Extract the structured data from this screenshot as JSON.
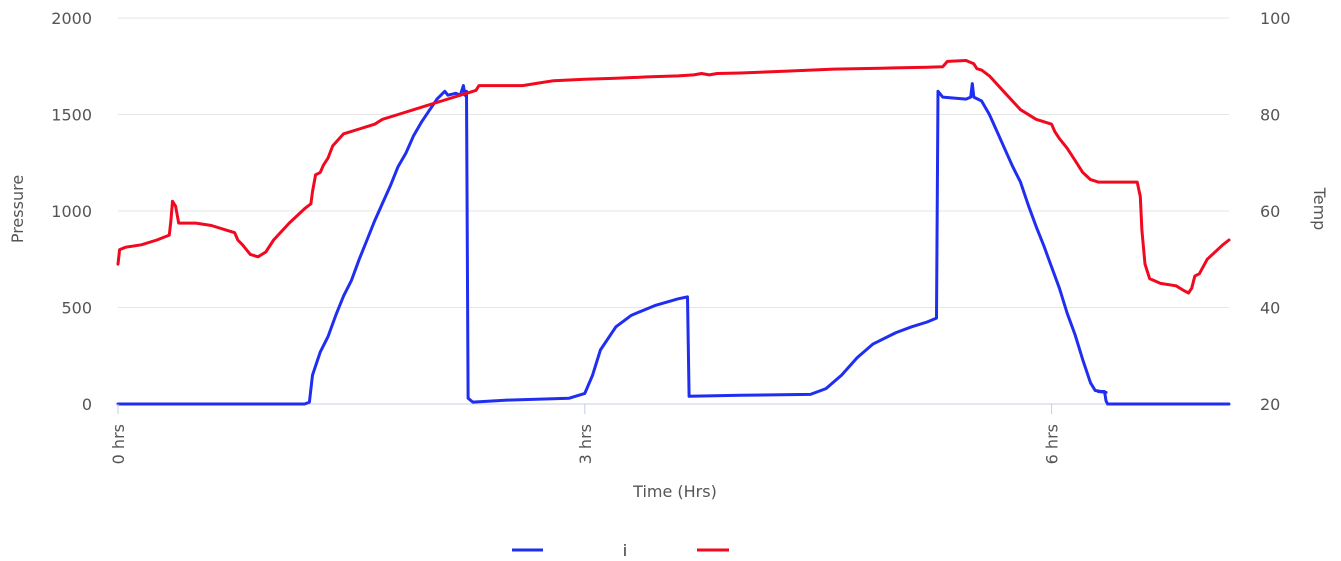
{
  "chart_data": {
    "type": "line",
    "xlabel": "Time (Hrs)",
    "ylabel_left": "Pressure",
    "ylabel_right": "Temp",
    "xlim": [
      0,
      7.14
    ],
    "ylim_left": [
      0,
      2000
    ],
    "ylim_right": [
      20,
      100
    ],
    "x_ticks": [
      0,
      3,
      6
    ],
    "x_tick_labels": [
      "0 hrs",
      "3 hrs",
      "6 hrs"
    ],
    "y_left_ticks": [
      0,
      500,
      1000,
      1500,
      2000
    ],
    "y_left_tick_labels": [
      "0",
      "500",
      "1000",
      "1500",
      "2000"
    ],
    "y_right_ticks": [
      20,
      40,
      60,
      80,
      100
    ],
    "y_right_tick_labels": [
      "20",
      "40",
      "60",
      "80",
      "100"
    ],
    "grid": true,
    "legend_position": "bottom-center",
    "legend_separator": "i",
    "series": [
      {
        "axis": "left",
        "color": "#1f2ef0",
        "points": [
          [
            0,
            0
          ],
          [
            1.2,
            0
          ],
          [
            1.23,
            10
          ],
          [
            1.25,
            150
          ],
          [
            1.3,
            270
          ],
          [
            1.35,
            350
          ],
          [
            1.4,
            460
          ],
          [
            1.45,
            560
          ],
          [
            1.5,
            640
          ],
          [
            1.55,
            750
          ],
          [
            1.6,
            850
          ],
          [
            1.65,
            950
          ],
          [
            1.7,
            1040
          ],
          [
            1.75,
            1130
          ],
          [
            1.8,
            1230
          ],
          [
            1.85,
            1300
          ],
          [
            1.9,
            1390
          ],
          [
            1.95,
            1460
          ],
          [
            2.0,
            1520
          ],
          [
            2.05,
            1580
          ],
          [
            2.1,
            1620
          ],
          [
            2.12,
            1600
          ],
          [
            2.17,
            1610
          ],
          [
            2.2,
            1600
          ],
          [
            2.22,
            1650
          ],
          [
            2.23,
            1600
          ],
          [
            2.24,
            1620
          ],
          [
            2.25,
            30
          ],
          [
            2.28,
            10
          ],
          [
            2.5,
            20
          ],
          [
            2.9,
            30
          ],
          [
            3.0,
            55
          ],
          [
            3.05,
            150
          ],
          [
            3.1,
            280
          ],
          [
            3.2,
            400
          ],
          [
            3.3,
            460
          ],
          [
            3.45,
            510
          ],
          [
            3.6,
            545
          ],
          [
            3.66,
            555
          ],
          [
            3.67,
            40
          ],
          [
            4.0,
            45
          ],
          [
            4.45,
            50
          ],
          [
            4.55,
            80
          ],
          [
            4.65,
            150
          ],
          [
            4.75,
            240
          ],
          [
            4.85,
            310
          ],
          [
            5.0,
            370
          ],
          [
            5.1,
            400
          ],
          [
            5.2,
            425
          ],
          [
            5.26,
            445
          ],
          [
            5.27,
            1620
          ],
          [
            5.3,
            1590
          ],
          [
            5.45,
            1580
          ],
          [
            5.48,
            1590
          ],
          [
            5.49,
            1660
          ],
          [
            5.5,
            1590
          ],
          [
            5.55,
            1570
          ],
          [
            5.6,
            1500
          ],
          [
            5.65,
            1410
          ],
          [
            5.7,
            1320
          ],
          [
            5.75,
            1230
          ],
          [
            5.8,
            1150
          ],
          [
            5.85,
            1030
          ],
          [
            5.9,
            920
          ],
          [
            5.95,
            820
          ],
          [
            6.0,
            710
          ],
          [
            6.05,
            600
          ],
          [
            6.1,
            470
          ],
          [
            6.15,
            360
          ],
          [
            6.2,
            230
          ],
          [
            6.25,
            110
          ],
          [
            6.28,
            70
          ],
          [
            6.35,
            60
          ],
          [
            6.3,
            65
          ],
          [
            6.34,
            65
          ],
          [
            6.35,
            15
          ],
          [
            6.36,
            0
          ],
          [
            7.14,
            0
          ]
        ]
      },
      {
        "axis": "right",
        "color": "#f0091f",
        "points": [
          [
            0,
            49
          ],
          [
            0.01,
            52
          ],
          [
            0.05,
            52.5
          ],
          [
            0.15,
            53
          ],
          [
            0.25,
            54
          ],
          [
            0.33,
            55
          ],
          [
            0.34,
            58
          ],
          [
            0.35,
            62
          ],
          [
            0.37,
            61
          ],
          [
            0.39,
            57.5
          ],
          [
            0.5,
            57.5
          ],
          [
            0.6,
            57
          ],
          [
            0.7,
            56
          ],
          [
            0.75,
            55.5
          ],
          [
            0.77,
            54
          ],
          [
            0.8,
            53
          ],
          [
            0.85,
            51
          ],
          [
            0.9,
            50.5
          ],
          [
            0.95,
            51.5
          ],
          [
            1.0,
            54
          ],
          [
            1.1,
            57.5
          ],
          [
            1.2,
            60.5
          ],
          [
            1.24,
            61.5
          ],
          [
            1.25,
            64
          ],
          [
            1.27,
            67.5
          ],
          [
            1.3,
            68
          ],
          [
            1.32,
            69.5
          ],
          [
            1.35,
            71
          ],
          [
            1.38,
            73.5
          ],
          [
            1.45,
            76
          ],
          [
            1.5,
            76.5
          ],
          [
            1.55,
            77
          ],
          [
            1.6,
            77.5
          ],
          [
            1.65,
            78
          ],
          [
            1.7,
            79
          ],
          [
            1.8,
            80
          ],
          [
            1.9,
            81
          ],
          [
            2.0,
            82
          ],
          [
            2.1,
            83
          ],
          [
            2.2,
            84
          ],
          [
            2.25,
            84.5
          ],
          [
            2.3,
            85
          ],
          [
            2.32,
            86
          ],
          [
            2.4,
            86
          ],
          [
            2.5,
            86
          ],
          [
            2.6,
            86
          ],
          [
            2.7,
            86.5
          ],
          [
            2.8,
            87
          ],
          [
            3.0,
            87.3
          ],
          [
            3.2,
            87.5
          ],
          [
            3.4,
            87.8
          ],
          [
            3.6,
            88
          ],
          [
            3.7,
            88.2
          ],
          [
            3.75,
            88.5
          ],
          [
            3.8,
            88.2
          ],
          [
            3.85,
            88.5
          ],
          [
            4.0,
            88.6
          ],
          [
            4.3,
            89
          ],
          [
            4.6,
            89.4
          ],
          [
            4.9,
            89.6
          ],
          [
            5.2,
            89.8
          ],
          [
            5.3,
            89.9
          ],
          [
            5.33,
            91
          ],
          [
            5.45,
            91.2
          ],
          [
            5.5,
            90.5
          ],
          [
            5.52,
            89.5
          ],
          [
            5.55,
            89.2
          ],
          [
            5.6,
            88
          ],
          [
            5.7,
            84.5
          ],
          [
            5.8,
            81
          ],
          [
            5.9,
            79
          ],
          [
            6.0,
            78
          ],
          [
            6.02,
            76.5
          ],
          [
            6.05,
            75
          ],
          [
            6.1,
            73
          ],
          [
            6.15,
            70.5
          ],
          [
            6.2,
            68
          ],
          [
            6.25,
            66.5
          ],
          [
            6.3,
            66
          ],
          [
            6.4,
            66
          ],
          [
            6.5,
            66
          ],
          [
            6.55,
            66
          ],
          [
            6.57,
            63
          ],
          [
            6.58,
            56
          ],
          [
            6.6,
            49
          ],
          [
            6.63,
            46
          ],
          [
            6.7,
            45
          ],
          [
            6.8,
            44.5
          ],
          [
            6.85,
            43.5
          ],
          [
            6.88,
            43
          ],
          [
            6.9,
            44
          ],
          [
            6.92,
            46.5
          ],
          [
            6.95,
            47
          ],
          [
            7.0,
            50
          ],
          [
            7.1,
            53
          ],
          [
            7.14,
            54
          ]
        ]
      }
    ]
  }
}
